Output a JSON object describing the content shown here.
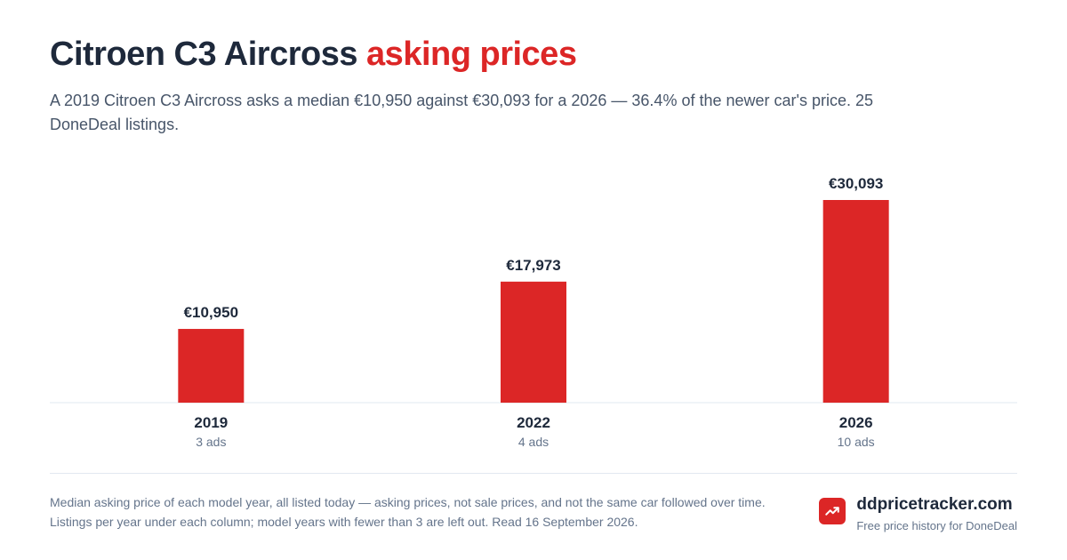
{
  "header": {
    "title_main": "Citroen C3 Aircross",
    "title_accent": "asking prices",
    "subtitle": "A 2019 Citroen C3 Aircross asks a median €10,950 against €30,093 for a 2026 — 36.4% of the newer car's price. 25 DoneDeal listings."
  },
  "chart_data": {
    "type": "bar",
    "categories": [
      "2019",
      "2022",
      "2026"
    ],
    "values": [
      10950,
      17973,
      30093
    ],
    "value_labels": [
      "€10,950",
      "€17,973",
      "€30,093"
    ],
    "counts": [
      "3 ads",
      "4 ads",
      "10 ads"
    ],
    "ylim": [
      0,
      30093
    ],
    "grid": false,
    "bar_color": "#dc2626"
  },
  "footer": {
    "note": "Median asking price of each model year, all listed today — asking prices, not sale prices, and not the same car followed over time. Listings per year under each column; model years with fewer than 3 are left out. Read 16 September 2026.",
    "brand_name": "ddpricetracker.com",
    "brand_tagline": "Free price history for DoneDeal",
    "brand_icon": "trending-up-icon"
  }
}
